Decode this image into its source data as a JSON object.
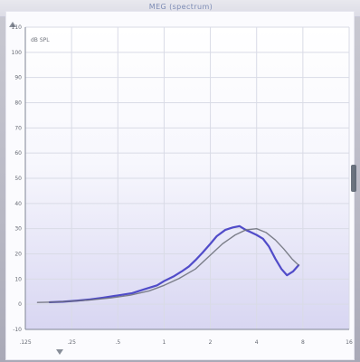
{
  "app": {
    "title": "MEG (spectrum)"
  },
  "chart_data": {
    "type": "line",
    "title": "",
    "xlabel": "",
    "ylabel": "dB SPL",
    "unit_label": "dB SPL",
    "ylim": [
      -10,
      110
    ],
    "y_ticks": [
      110,
      100,
      90,
      80,
      70,
      60,
      50,
      40,
      30,
      20,
      10,
      0,
      -10
    ],
    "x_ticks": [
      ".125",
      ".25",
      ".5",
      "1",
      "2",
      "4",
      "8",
      "16"
    ],
    "x_log": true,
    "grid": true,
    "series": [
      {
        "name": "",
        "color": "#4a43c6",
        "x": [
          0.18,
          0.22,
          0.27,
          0.33,
          0.4,
          0.5,
          0.62,
          0.75,
          0.9,
          1.0,
          1.15,
          1.3,
          1.45,
          1.6,
          1.78,
          2.0,
          2.2,
          2.5,
          2.8,
          3.1,
          3.4,
          3.7,
          4.0,
          4.4,
          4.8,
          5.3,
          5.8,
          6.3,
          6.9,
          7.5
        ],
        "y": [
          0.8,
          1.0,
          1.4,
          1.9,
          2.6,
          3.5,
          4.4,
          6.0,
          7.5,
          9.2,
          11.0,
          13.0,
          15.0,
          17.5,
          20.5,
          24.0,
          27.0,
          29.5,
          30.5,
          31.0,
          29.5,
          28.5,
          27.5,
          26.0,
          23.0,
          18.0,
          14.0,
          11.5,
          13.0,
          15.5
        ]
      },
      {
        "name": "",
        "color": "#6a6d77",
        "x": [
          0.15,
          0.2,
          0.25,
          0.33,
          0.45,
          0.6,
          0.8,
          1.0,
          1.25,
          1.6,
          2.0,
          2.4,
          2.9,
          3.4,
          4.0,
          4.6,
          5.3,
          6.0,
          6.8,
          7.5
        ],
        "y": [
          0.7,
          0.9,
          1.2,
          1.7,
          2.5,
          3.6,
          5.3,
          7.5,
          10.2,
          14.0,
          19.5,
          24.0,
          27.5,
          29.5,
          30.0,
          28.5,
          25.5,
          22.0,
          18.0,
          15.5
        ]
      }
    ]
  }
}
